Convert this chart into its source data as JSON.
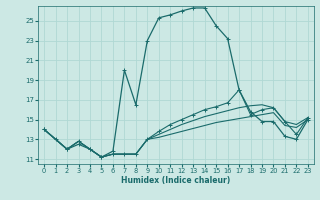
{
  "xlabel": "Humidex (Indice chaleur)",
  "background_color": "#cce8e4",
  "grid_color": "#b0d8d4",
  "line_color": "#1a6b6b",
  "xlim": [
    -0.5,
    23.5
  ],
  "ylim": [
    10.5,
    26.5
  ],
  "xticks": [
    0,
    1,
    2,
    3,
    4,
    5,
    6,
    7,
    8,
    9,
    10,
    11,
    12,
    13,
    14,
    15,
    16,
    17,
    18,
    19,
    20,
    21,
    22,
    23
  ],
  "yticks": [
    11,
    13,
    15,
    17,
    19,
    21,
    23,
    25
  ],
  "line1_dotted": {
    "x": [
      0,
      1,
      2,
      3,
      4,
      5,
      6,
      7,
      8,
      9,
      10,
      11,
      12,
      13,
      14,
      15,
      16,
      17,
      18,
      19,
      20,
      21,
      22,
      23
    ],
    "y": [
      14,
      13,
      12,
      12.5,
      12,
      11.2,
      11.8,
      20,
      16.5,
      23,
      25.3,
      25.6,
      26.0,
      26.3,
      26.3,
      24.5,
      23.2,
      18.0,
      15.8,
      14.8,
      14.8,
      13.3,
      13.0,
      15.0
    ]
  },
  "line2": {
    "x": [
      0,
      2,
      3,
      4,
      5,
      6,
      7,
      8,
      9,
      10,
      11,
      12,
      13,
      14,
      15,
      16,
      17,
      18,
      19,
      20,
      21,
      22,
      23
    ],
    "y": [
      14,
      12,
      12.8,
      12,
      11.2,
      11.5,
      11.5,
      11.5,
      13,
      13.8,
      14.5,
      15.0,
      15.5,
      16.0,
      16.3,
      16.7,
      18.0,
      15.5,
      16.0,
      16.2,
      14.8,
      13.5,
      15.2
    ]
  },
  "line3": {
    "x": [
      0,
      2,
      3,
      4,
      5,
      6,
      7,
      8,
      9,
      10,
      11,
      12,
      13,
      14,
      15,
      16,
      17,
      18,
      19,
      20,
      21,
      22,
      23
    ],
    "y": [
      14,
      12,
      12.8,
      12,
      11.2,
      11.5,
      11.5,
      11.5,
      13,
      13.5,
      14.0,
      14.5,
      14.9,
      15.3,
      15.6,
      15.9,
      16.2,
      16.4,
      16.5,
      16.2,
      14.8,
      14.5,
      15.2
    ]
  },
  "line4": {
    "x": [
      0,
      2,
      3,
      4,
      5,
      6,
      7,
      8,
      9,
      10,
      11,
      12,
      13,
      14,
      15,
      16,
      17,
      18,
      19,
      20,
      21,
      22,
      23
    ],
    "y": [
      14,
      12,
      12.8,
      12,
      11.2,
      11.5,
      11.5,
      11.5,
      13,
      13.2,
      13.5,
      13.8,
      14.1,
      14.4,
      14.7,
      14.9,
      15.1,
      15.3,
      15.5,
      15.7,
      14.4,
      14.2,
      15.0
    ]
  }
}
